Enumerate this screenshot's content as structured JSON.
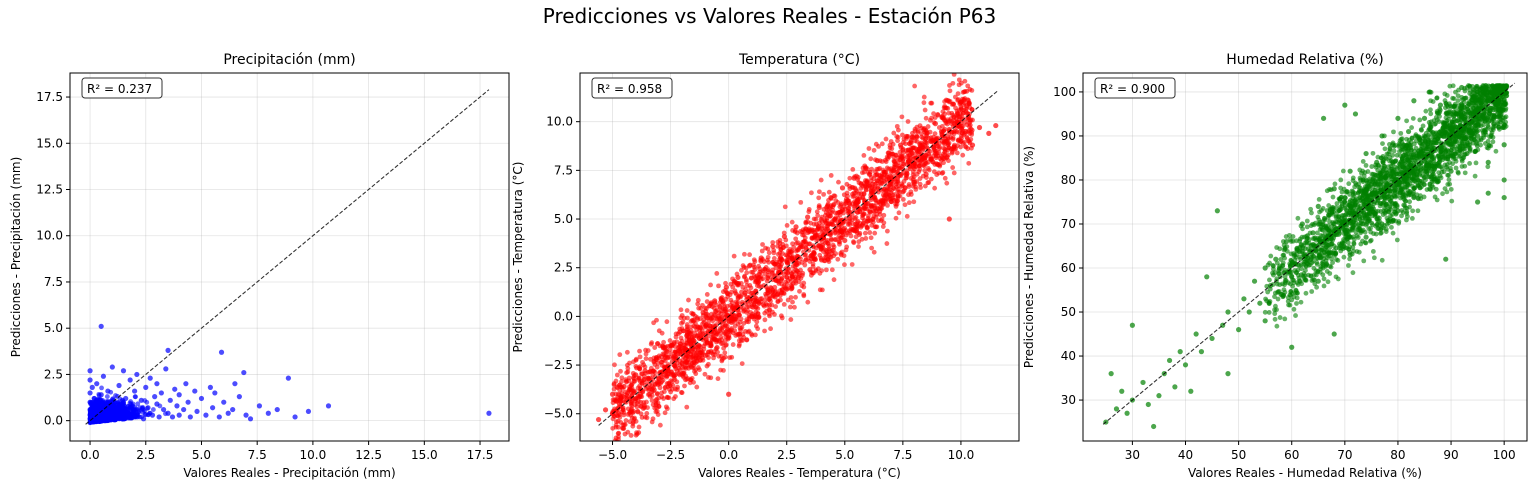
{
  "figure": {
    "suptitle": "Predicciones vs Valores Reales - Estación P63"
  },
  "chart_data": [
    {
      "type": "scatter",
      "title": "Precipitación (mm)",
      "xlabel": "Valores Reales - Precipitación (mm)",
      "ylabel": "Predicciones - Precipitación (mm)",
      "color": "#0000ff",
      "r2_label": "R² = 0.237",
      "xlim": [
        -0.9,
        18.8
      ],
      "ylim": [
        -1.1,
        18.8
      ],
      "xticks": [
        0.0,
        2.5,
        5.0,
        7.5,
        10.0,
        12.5,
        15.0,
        17.5
      ],
      "xtick_labels": [
        "0.0",
        "2.5",
        "5.0",
        "7.5",
        "10.0",
        "12.5",
        "15.0",
        "17.5"
      ],
      "yticks": [
        0.0,
        2.5,
        5.0,
        7.5,
        10.0,
        12.5,
        15.0,
        17.5
      ],
      "ytick_labels": [
        "0.0",
        "2.5",
        "5.0",
        "7.5",
        "10.0",
        "12.5",
        "15.0",
        "17.5"
      ],
      "identity_line": [
        [
          -0.2,
          -0.2
        ],
        [
          17.9,
          17.9
        ]
      ],
      "grid": true,
      "points": [
        [
          0.0,
          0.1
        ],
        [
          0.0,
          0.3
        ],
        [
          0.0,
          0.6
        ],
        [
          0.0,
          1.0
        ],
        [
          0.0,
          1.5
        ],
        [
          0.0,
          2.2
        ],
        [
          0.0,
          2.7
        ],
        [
          0.0,
          -0.1
        ],
        [
          0.1,
          0.2
        ],
        [
          0.1,
          0.8
        ],
        [
          0.1,
          1.8
        ],
        [
          0.2,
          0.0
        ],
        [
          0.2,
          0.5
        ],
        [
          0.2,
          1.2
        ],
        [
          0.3,
          0.3
        ],
        [
          0.3,
          2.0
        ],
        [
          0.4,
          0.1
        ],
        [
          0.4,
          0.9
        ],
        [
          0.5,
          0.4
        ],
        [
          0.5,
          1.4
        ],
        [
          0.5,
          5.1
        ],
        [
          0.6,
          0.2
        ],
        [
          0.6,
          2.4
        ],
        [
          0.7,
          0.7
        ],
        [
          0.8,
          0.1
        ],
        [
          0.8,
          1.6
        ],
        [
          0.9,
          0.5
        ],
        [
          1.0,
          0.3
        ],
        [
          1.0,
          2.9
        ],
        [
          1.1,
          1.0
        ],
        [
          1.2,
          0.2
        ],
        [
          1.3,
          1.9
        ],
        [
          1.4,
          0.6
        ],
        [
          1.5,
          0.1
        ],
        [
          1.5,
          2.7
        ],
        [
          1.6,
          1.2
        ],
        [
          1.7,
          0.4
        ],
        [
          1.8,
          2.2
        ],
        [
          1.9,
          0.8
        ],
        [
          2.0,
          0.2
        ],
        [
          2.0,
          1.6
        ],
        [
          2.1,
          2.5
        ],
        [
          2.2,
          0.5
        ],
        [
          2.3,
          1.1
        ],
        [
          2.4,
          0.1
        ],
        [
          2.5,
          1.8
        ],
        [
          2.6,
          0.7
        ],
        [
          2.7,
          2.3
        ],
        [
          2.8,
          0.3
        ],
        [
          2.9,
          1.3
        ],
        [
          3.0,
          0.9
        ],
        [
          3.0,
          2.0
        ],
        [
          3.1,
          0.2
        ],
        [
          3.2,
          1.5
        ],
        [
          3.3,
          0.6
        ],
        [
          3.4,
          2.8
        ],
        [
          3.5,
          3.8
        ],
        [
          3.5,
          0.4
        ],
        [
          3.6,
          1.1
        ],
        [
          3.7,
          0.2
        ],
        [
          3.8,
          1.7
        ],
        [
          3.9,
          0.8
        ],
        [
          4.0,
          0.3
        ],
        [
          4.0,
          1.4
        ],
        [
          4.2,
          0.6
        ],
        [
          4.3,
          2.0
        ],
        [
          4.4,
          1.0
        ],
        [
          4.5,
          0.2
        ],
        [
          4.7,
          1.6
        ],
        [
          4.8,
          0.5
        ],
        [
          5.0,
          1.2
        ],
        [
          5.2,
          0.3
        ],
        [
          5.4,
          1.8
        ],
        [
          5.5,
          0.7
        ],
        [
          5.6,
          1.5
        ],
        [
          5.8,
          0.2
        ],
        [
          5.9,
          3.7
        ],
        [
          6.0,
          1.0
        ],
        [
          6.2,
          0.4
        ],
        [
          6.4,
          0.6
        ],
        [
          6.5,
          2.0
        ],
        [
          6.7,
          1.3
        ],
        [
          6.9,
          2.6
        ],
        [
          7.0,
          0.3
        ],
        [
          7.2,
          0.1
        ],
        [
          7.6,
          0.8
        ],
        [
          8.0,
          0.4
        ],
        [
          8.4,
          0.6
        ],
        [
          8.9,
          2.3
        ],
        [
          9.2,
          0.2
        ],
        [
          9.8,
          0.5
        ],
        [
          10.7,
          0.8
        ],
        [
          17.9,
          0.4
        ]
      ]
    },
    {
      "type": "scatter",
      "title": "Temperatura (°C)",
      "xlabel": "Valores Reales - Temperatura (°C)",
      "ylabel": "Predicciones - Temperatura (°C)",
      "color": "#ff0000",
      "r2_label": "R² = 0.958",
      "xlim": [
        -6.4,
        12.5
      ],
      "ylim": [
        -6.4,
        12.5
      ],
      "xticks": [
        -5.0,
        -2.5,
        0.0,
        2.5,
        5.0,
        7.5,
        10.0
      ],
      "xtick_labels": [
        "−5.0",
        "−2.5",
        "0.0",
        "2.5",
        "5.0",
        "7.5",
        "10.0"
      ],
      "yticks": [
        -5.0,
        -2.5,
        0.0,
        2.5,
        5.0,
        7.5,
        10.0
      ],
      "ytick_labels": [
        "−5.0",
        "−2.5",
        "0.0",
        "2.5",
        "5.0",
        "7.5",
        "10.0"
      ],
      "identity_line": [
        [
          -5.6,
          -5.6
        ],
        [
          11.6,
          11.6
        ]
      ],
      "grid": true,
      "points": [
        [
          -5.6,
          -5.3
        ],
        [
          -5.3,
          -4.8
        ],
        [
          -5.0,
          -5.0
        ],
        [
          -5.0,
          -4.0
        ],
        [
          -4.7,
          -4.5
        ],
        [
          -4.5,
          -3.6
        ],
        [
          -4.2,
          -4.2
        ],
        [
          -4.0,
          -3.0
        ],
        [
          -3.8,
          -4.0
        ],
        [
          -3.6,
          -2.8
        ],
        [
          -3.3,
          -3.6
        ],
        [
          -3.1,
          -2.2
        ],
        [
          -3.0,
          -3.2
        ],
        [
          -2.8,
          -1.6
        ],
        [
          -2.6,
          -2.8
        ],
        [
          -2.5,
          -1.5
        ],
        [
          -2.3,
          -3.0
        ],
        [
          -2.1,
          -0.8
        ],
        [
          -2.0,
          -2.4
        ],
        [
          -1.8,
          -1.0
        ],
        [
          -1.6,
          -2.6
        ],
        [
          -1.5,
          -0.2
        ],
        [
          -1.3,
          -1.5
        ],
        [
          -1.1,
          0.2
        ],
        [
          -1.0,
          -2.0
        ],
        [
          -0.8,
          -0.5
        ],
        [
          -0.6,
          0.8
        ],
        [
          -0.5,
          -1.6
        ],
        [
          -0.3,
          0.3
        ],
        [
          -0.1,
          1.5
        ],
        [
          0.0,
          -1.0
        ],
        [
          0.0,
          -4.0
        ],
        [
          0.2,
          0.5
        ],
        [
          0.4,
          2.0
        ],
        [
          0.5,
          -0.6
        ],
        [
          0.7,
          1.2
        ],
        [
          0.9,
          2.6
        ],
        [
          1.0,
          0.0
        ],
        [
          1.2,
          1.8
        ],
        [
          1.4,
          3.0
        ],
        [
          1.5,
          0.6
        ],
        [
          1.7,
          2.3
        ],
        [
          1.9,
          3.6
        ],
        [
          2.0,
          1.0
        ],
        [
          2.2,
          2.8
        ],
        [
          2.4,
          4.1
        ],
        [
          2.5,
          1.4
        ],
        [
          2.7,
          3.3
        ],
        [
          2.9,
          4.6
        ],
        [
          3.0,
          2.0
        ],
        [
          3.2,
          3.8
        ],
        [
          3.4,
          5.1
        ],
        [
          3.5,
          2.4
        ],
        [
          3.7,
          4.3
        ],
        [
          3.9,
          5.6
        ],
        [
          4.0,
          2.9
        ],
        [
          4.2,
          4.8
        ],
        [
          4.4,
          6.1
        ],
        [
          4.5,
          3.4
        ],
        [
          4.7,
          5.3
        ],
        [
          4.9,
          6.6
        ],
        [
          5.0,
          3.9
        ],
        [
          5.2,
          5.8
        ],
        [
          5.4,
          7.1
        ],
        [
          5.5,
          4.4
        ],
        [
          5.7,
          6.3
        ],
        [
          5.9,
          7.6
        ],
        [
          6.0,
          4.9
        ],
        [
          6.2,
          6.8
        ],
        [
          6.4,
          8.0
        ],
        [
          6.5,
          5.4
        ],
        [
          6.7,
          7.3
        ],
        [
          6.9,
          8.4
        ],
        [
          7.0,
          5.9
        ],
        [
          7.2,
          7.8
        ],
        [
          7.4,
          8.8
        ],
        [
          7.5,
          6.4
        ],
        [
          7.7,
          8.2
        ],
        [
          7.9,
          9.2
        ],
        [
          8.0,
          6.9
        ],
        [
          8.2,
          8.6
        ],
        [
          8.4,
          9.6
        ],
        [
          8.5,
          7.3
        ],
        [
          8.7,
          9.0
        ],
        [
          8.9,
          9.9
        ],
        [
          9.0,
          7.8
        ],
        [
          9.2,
          9.3
        ],
        [
          9.4,
          8.2
        ],
        [
          9.5,
          9.6
        ],
        [
          9.7,
          8.7
        ],
        [
          9.9,
          9.8
        ],
        [
          10.0,
          9.0
        ],
        [
          10.2,
          9.5
        ],
        [
          10.5,
          8.8
        ],
        [
          10.8,
          9.7
        ],
        [
          11.2,
          9.4
        ],
        [
          11.5,
          9.8
        ],
        [
          9.5,
          5.0
        ]
      ]
    },
    {
      "type": "scatter",
      "title": "Humedad Relativa (%)",
      "xlabel": "Valores Reales - Humedad Relativa (%)",
      "ylabel": "Predicciones - Humedad Relativa (%)",
      "color": "#008000",
      "r2_label": "R² = 0.900",
      "xlim": [
        20.7,
        104.3
      ],
      "ylim": [
        20.7,
        104.3
      ],
      "xticks": [
        30,
        40,
        50,
        60,
        70,
        80,
        90,
        100
      ],
      "xtick_labels": [
        "30",
        "40",
        "50",
        "60",
        "70",
        "80",
        "90",
        "100"
      ],
      "yticks": [
        30,
        40,
        50,
        60,
        70,
        80,
        90,
        100
      ],
      "ytick_labels": [
        "30",
        "40",
        "50",
        "60",
        "70",
        "80",
        "90",
        "100"
      ],
      "identity_line": [
        [
          24.5,
          24.5
        ],
        [
          102.0,
          102.0
        ]
      ],
      "grid": true,
      "points": [
        [
          25,
          25
        ],
        [
          26,
          36
        ],
        [
          27,
          28
        ],
        [
          28,
          32
        ],
        [
          29,
          27
        ],
        [
          30,
          47
        ],
        [
          30,
          30
        ],
        [
          32,
          34
        ],
        [
          33,
          29
        ],
        [
          34,
          24
        ],
        [
          35,
          31
        ],
        [
          36,
          36
        ],
        [
          37,
          39
        ],
        [
          38,
          33
        ],
        [
          39,
          41
        ],
        [
          40,
          38
        ],
        [
          41,
          32
        ],
        [
          42,
          45
        ],
        [
          43,
          41
        ],
        [
          44,
          58
        ],
        [
          45,
          44
        ],
        [
          46,
          73
        ],
        [
          47,
          47
        ],
        [
          48,
          50
        ],
        [
          48,
          36
        ],
        [
          50,
          46
        ],
        [
          51,
          53
        ],
        [
          52,
          50
        ],
        [
          53,
          57
        ],
        [
          54,
          52
        ],
        [
          55,
          60
        ],
        [
          55,
          48
        ],
        [
          56,
          56
        ],
        [
          57,
          62
        ],
        [
          58,
          54
        ],
        [
          59,
          66
        ],
        [
          60,
          58
        ],
        [
          60,
          42
        ],
        [
          61,
          64
        ],
        [
          62,
          70
        ],
        [
          63,
          61
        ],
        [
          64,
          68
        ],
        [
          65,
          74
        ],
        [
          65,
          57
        ],
        [
          66,
          66
        ],
        [
          67,
          72
        ],
        [
          68,
          78
        ],
        [
          68,
          45
        ],
        [
          69,
          69
        ],
        [
          70,
          76
        ],
        [
          71,
          82
        ],
        [
          71,
          63
        ],
        [
          72,
          73
        ],
        [
          73,
          80
        ],
        [
          74,
          86
        ],
        [
          74,
          67
        ],
        [
          75,
          76
        ],
        [
          76,
          84
        ],
        [
          77,
          90
        ],
        [
          77,
          70
        ],
        [
          78,
          79
        ],
        [
          79,
          88
        ],
        [
          80,
          94
        ],
        [
          80,
          73
        ],
        [
          81,
          83
        ],
        [
          82,
          91
        ],
        [
          83,
          98
        ],
        [
          83,
          76
        ],
        [
          84,
          86
        ],
        [
          85,
          94
        ],
        [
          86,
          100
        ],
        [
          86,
          78
        ],
        [
          87,
          89
        ],
        [
          88,
          97
        ],
        [
          89,
          92
        ],
        [
          89,
          62
        ],
        [
          90,
          82
        ],
        [
          91,
          95
        ],
        [
          92,
          101
        ],
        [
          93,
          86
        ],
        [
          94,
          98
        ],
        [
          95,
          90
        ],
        [
          96,
          100
        ],
        [
          97,
          84
        ],
        [
          98,
          96
        ],
        [
          99,
          92
        ],
        [
          100,
          101
        ],
        [
          100,
          88
        ],
        [
          100,
          80
        ],
        [
          100,
          76
        ],
        [
          66,
          94
        ],
        [
          70,
          97
        ],
        [
          72,
          95
        ],
        [
          95,
          75
        ],
        [
          97,
          77
        ]
      ]
    }
  ]
}
